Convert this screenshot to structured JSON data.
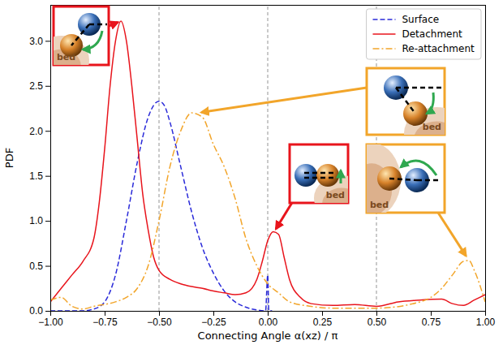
{
  "chart_data": {
    "type": "line",
    "x_label": "Connecting Angle α(xz) / π",
    "y_label": "PDF",
    "xlim": [
      -1,
      1
    ],
    "ylim": [
      0,
      3.4
    ],
    "xticks": [
      {
        "value": -1,
        "label": "−1.00"
      },
      {
        "value": -0.75,
        "label": "−0.75"
      },
      {
        "value": -0.5,
        "label": "−0.50"
      },
      {
        "value": -0.25,
        "label": "−0.25"
      },
      {
        "value": 0,
        "label": "0.00"
      },
      {
        "value": 0.25,
        "label": "0.25"
      },
      {
        "value": 0.5,
        "label": "0.50"
      },
      {
        "value": 0.75,
        "label": "0.75"
      },
      {
        "value": 1,
        "label": "1.00"
      }
    ],
    "yticks": [
      {
        "value": 0,
        "label": "0.0"
      },
      {
        "value": 0.5,
        "label": "0.5"
      },
      {
        "value": 1,
        "label": "1.0"
      },
      {
        "value": 1.5,
        "label": "1.5"
      },
      {
        "value": 2,
        "label": "2.0"
      },
      {
        "value": 2.5,
        "label": "2.5"
      },
      {
        "value": 3,
        "label": "3.0"
      }
    ],
    "vlines": [
      -0.5,
      0,
      0.5
    ],
    "legend": "upper right",
    "series": [
      {
        "name": "Surface",
        "color": "#2b2bd9",
        "line_style": "dashed",
        "x": [
          -1,
          -0.85,
          -0.8,
          -0.75,
          -0.7,
          -0.65,
          -0.6,
          -0.55,
          -0.5,
          -0.475,
          -0.45,
          -0.4,
          -0.35,
          -0.3,
          -0.25,
          -0.2,
          -0.15,
          -0.1,
          -0.05,
          -0.01,
          0,
          0.005,
          0.02
        ],
        "values": [
          0,
          0,
          0.02,
          0.1,
          0.4,
          1.0,
          1.65,
          2.15,
          2.33,
          2.28,
          2.1,
          1.6,
          1.1,
          0.7,
          0.42,
          0.22,
          0.1,
          0.04,
          0.01,
          0,
          0.4,
          0,
          0
        ]
      },
      {
        "name": "Detachment",
        "color": "#e8141c",
        "line_style": "solid",
        "x": [
          -1,
          -0.95,
          -0.9,
          -0.85,
          -0.8,
          -0.775,
          -0.75,
          -0.725,
          -0.7,
          -0.675,
          -0.65,
          -0.625,
          -0.6,
          -0.575,
          -0.55,
          -0.525,
          -0.5,
          -0.45,
          -0.4,
          -0.35,
          -0.3,
          -0.25,
          -0.2,
          -0.15,
          -0.1,
          -0.05,
          -0.025,
          0,
          0.025,
          0.05,
          0.075,
          0.1,
          0.15,
          0.2,
          0.3,
          0.4,
          0.5,
          0.6,
          0.7,
          0.8,
          0.85,
          0.9,
          0.95,
          1
        ],
        "values": [
          0.1,
          0.25,
          0.4,
          0.55,
          0.8,
          1.2,
          1.8,
          2.5,
          3.0,
          3.22,
          3.0,
          2.5,
          1.9,
          1.3,
          0.9,
          0.6,
          0.45,
          0.35,
          0.3,
          0.27,
          0.25,
          0.22,
          0.2,
          0.18,
          0.2,
          0.35,
          0.55,
          0.78,
          0.88,
          0.85,
          0.6,
          0.35,
          0.15,
          0.08,
          0.06,
          0.07,
          0.05,
          0.1,
          0.12,
          0.13,
          0.08,
          0.06,
          0.12,
          0.18
        ]
      },
      {
        "name": "Re-attachment",
        "color": "#f2a52a",
        "line_style": "dashdot",
        "x": [
          -1,
          -0.95,
          -0.9,
          -0.85,
          -0.8,
          -0.7,
          -0.65,
          -0.6,
          -0.55,
          -0.5,
          -0.45,
          -0.4,
          -0.35,
          -0.3,
          -0.25,
          -0.2,
          -0.15,
          -0.1,
          -0.05,
          0,
          0.05,
          0.1,
          0.2,
          0.3,
          0.5,
          0.7,
          0.75,
          0.8,
          0.85,
          0.9,
          0.925,
          0.95,
          1
        ],
        "values": [
          0.12,
          0.15,
          0.05,
          0.02,
          0.05,
          0.1,
          0.15,
          0.25,
          0.5,
          1.0,
          1.6,
          2.0,
          2.2,
          2.15,
          1.85,
          1.6,
          1.25,
          0.8,
          0.5,
          0.3,
          0.2,
          0.1,
          0.05,
          0.03,
          0.03,
          0.1,
          0.15,
          0.25,
          0.4,
          0.55,
          0.56,
          0.45,
          0.1
        ]
      }
    ],
    "annotations": [
      {
        "text": "bed",
        "x": -0.675,
        "y": 3.22,
        "color": "#e8141c"
      },
      {
        "text": "bed",
        "x": 0.03,
        "y": 0.88,
        "color": "#e8141c"
      },
      {
        "text": "bed",
        "x": -0.32,
        "y": 2.2,
        "color": "#f2a52a"
      },
      {
        "text": "bed",
        "x": 0.92,
        "y": 0.58,
        "color": "#f2a52a"
      }
    ]
  }
}
